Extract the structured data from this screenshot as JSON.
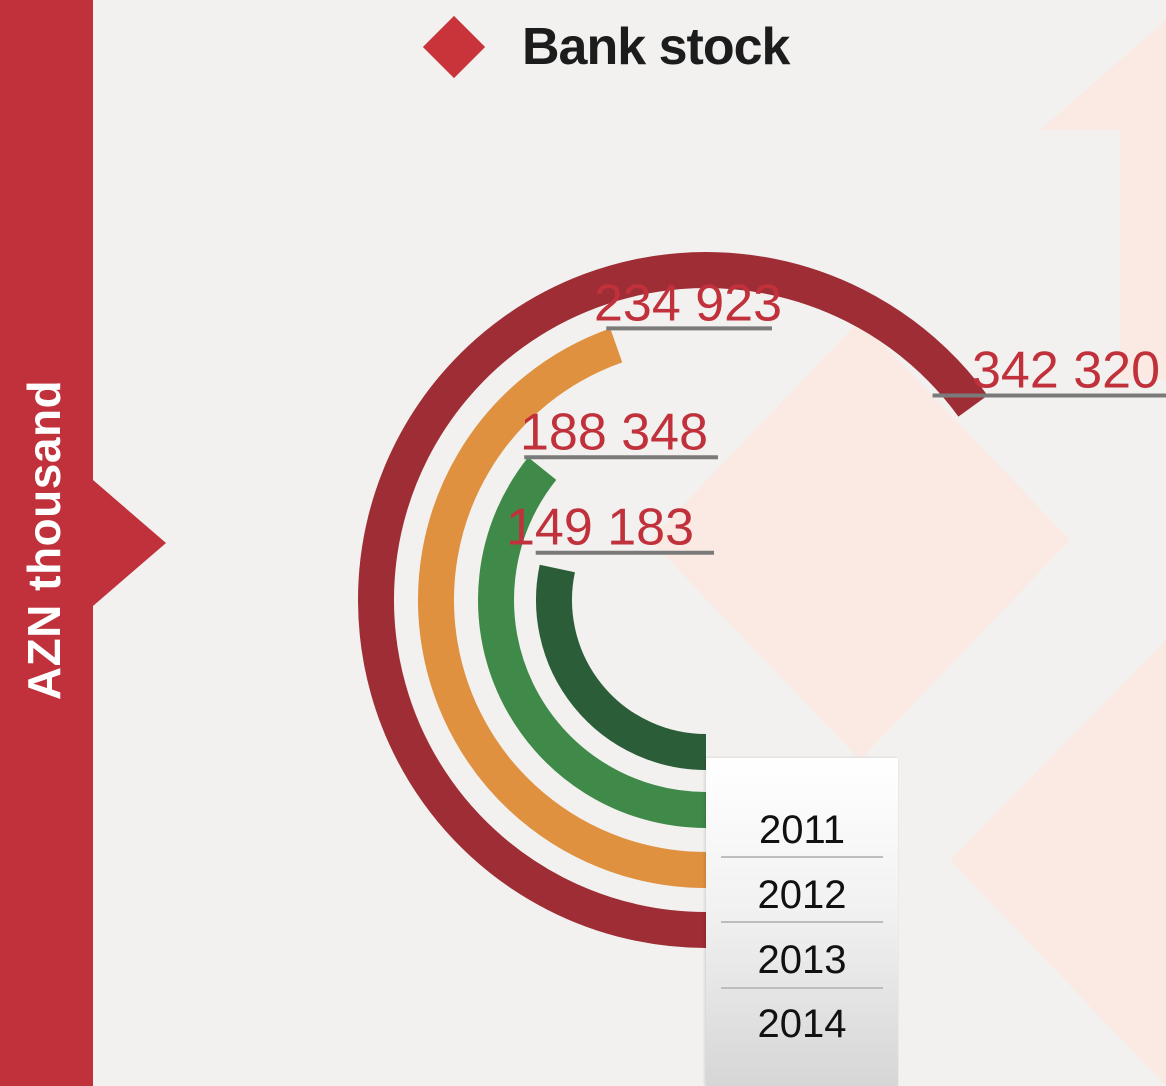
{
  "title": "Bank stock",
  "axis_label": "AZN thousand",
  "colors": {
    "side_band": "#c0313b",
    "title_diamond": "#c8343a",
    "value_text": "#c0313b",
    "leader_line": "#7a7a7a",
    "bg_arrows": "#fbe9e0"
  },
  "chart_data": {
    "type": "radial_bar",
    "title": "Bank stock",
    "ylabel": "AZN thousand",
    "categories": [
      "2011",
      "2012",
      "2013",
      "2014"
    ],
    "values": [
      149183,
      188348,
      234923,
      342320
    ],
    "value_labels": [
      "149 183",
      "188 348",
      "234 923",
      "342 320"
    ],
    "series_colors": [
      "#2b5e38",
      "#3f8a48",
      "#e09140",
      "#9e2d36"
    ]
  }
}
